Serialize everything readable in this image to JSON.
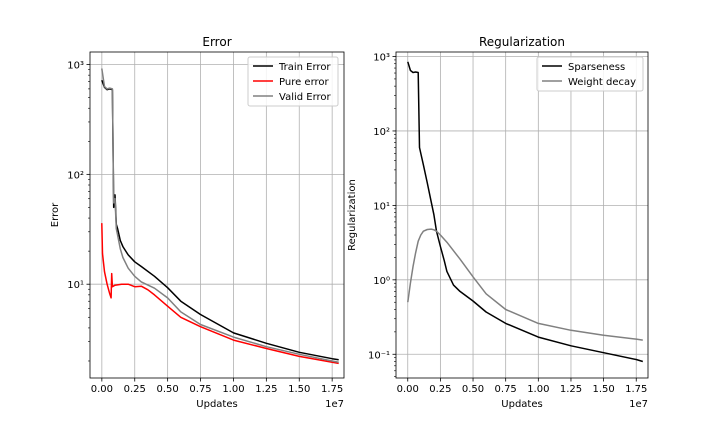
{
  "chart_data": [
    {
      "type": "line",
      "title": "Error",
      "xlabel": "Updates",
      "ylabel": "Error",
      "xscale": "linear",
      "yscale": "log",
      "xlim": [
        -0.09,
        1.84
      ],
      "ylim": [
        1.4,
        1300
      ],
      "x_offset_text": "1e7",
      "x_unit_multiplier": 10000000,
      "grid": true,
      "legend_position": "upper right",
      "xticks": [
        0.0,
        0.25,
        0.5,
        0.75,
        1.0,
        1.25,
        1.5,
        1.75
      ],
      "xtick_labels": [
        "0.00",
        "0.25",
        "0.50",
        "0.75",
        "1.00",
        "1.25",
        "1.50",
        "1.75"
      ],
      "yticks": [
        10,
        100,
        1000
      ],
      "ytick_labels": [
        "10¹",
        "10²",
        "10³"
      ],
      "series": [
        {
          "name": "Train Error",
          "color": "#000000",
          "x": [
            0.0,
            0.02,
            0.04,
            0.06,
            0.08,
            0.09,
            0.1,
            0.11,
            0.12,
            0.14,
            0.16,
            0.2,
            0.25,
            0.3,
            0.4,
            0.5,
            0.6,
            0.75,
            1.0,
            1.25,
            1.5,
            1.75,
            1.8
          ],
          "y": [
            720,
            620,
            590,
            600,
            590,
            50,
            65,
            35,
            32,
            25,
            22,
            18.5,
            16,
            14.5,
            11.8,
            9.3,
            7.0,
            5.3,
            3.6,
            2.9,
            2.4,
            2.1,
            2.05
          ]
        },
        {
          "name": "Pure error",
          "color": "#ff0000",
          "x": [
            0.0,
            0.005,
            0.02,
            0.04,
            0.06,
            0.07,
            0.075,
            0.08,
            0.1,
            0.15,
            0.2,
            0.25,
            0.3,
            0.35,
            0.4,
            0.5,
            0.6,
            0.75,
            1.0,
            1.25,
            1.5,
            1.75,
            1.8
          ],
          "y": [
            36,
            19,
            13,
            10,
            8.2,
            7.5,
            12.5,
            9.5,
            9.8,
            10.0,
            10.0,
            9.5,
            9.6,
            8.9,
            8.0,
            6.3,
            5.0,
            4.1,
            3.1,
            2.6,
            2.2,
            1.95,
            1.9
          ]
        },
        {
          "name": "Valid Error",
          "color": "#808080",
          "x": [
            0.0,
            0.02,
            0.04,
            0.06,
            0.08,
            0.09,
            0.1,
            0.11,
            0.12,
            0.14,
            0.16,
            0.2,
            0.25,
            0.3,
            0.4,
            0.5,
            0.6,
            0.75,
            1.0,
            1.25,
            1.5,
            1.75,
            1.8
          ],
          "y": [
            920,
            630,
            600,
            610,
            600,
            55,
            60,
            32,
            28,
            21,
            17.5,
            14,
            11.8,
            10.5,
            9.2,
            7.5,
            5.6,
            4.3,
            3.3,
            2.7,
            2.3,
            2.0,
            1.95
          ]
        }
      ]
    },
    {
      "type": "line",
      "title": "Regularization",
      "xlabel": "Updates",
      "ylabel": "Regularization",
      "xscale": "linear",
      "yscale": "log",
      "xlim": [
        -0.09,
        1.84
      ],
      "ylim": [
        0.048,
        1150
      ],
      "x_offset_text": "1e7",
      "x_unit_multiplier": 10000000,
      "grid": true,
      "legend_position": "upper right",
      "xticks": [
        0.0,
        0.25,
        0.5,
        0.75,
        1.0,
        1.25,
        1.5,
        1.75
      ],
      "xtick_labels": [
        "0.00",
        "0.25",
        "0.50",
        "0.75",
        "1.00",
        "1.25",
        "1.50",
        "1.75"
      ],
      "yticks": [
        0.1,
        1,
        10,
        100,
        1000
      ],
      "ytick_labels": [
        "10⁻¹",
        "10⁰",
        "10¹",
        "10²",
        "10³"
      ],
      "series": [
        {
          "name": "Sparseness",
          "color": "#000000",
          "x": [
            0.0,
            0.02,
            0.04,
            0.06,
            0.08,
            0.09,
            0.1,
            0.12,
            0.15,
            0.18,
            0.2,
            0.22,
            0.25,
            0.28,
            0.3,
            0.35,
            0.4,
            0.5,
            0.6,
            0.75,
            1.0,
            1.25,
            1.5,
            1.75,
            1.8
          ],
          "y": [
            850,
            650,
            610,
            620,
            610,
            60,
            50,
            35,
            20,
            11,
            7.5,
            4.5,
            2.8,
            1.8,
            1.3,
            0.85,
            0.7,
            0.52,
            0.37,
            0.26,
            0.17,
            0.13,
            0.105,
            0.085,
            0.08
          ]
        },
        {
          "name": "Weight decay",
          "color": "#808080",
          "x": [
            0.0,
            0.02,
            0.04,
            0.06,
            0.08,
            0.1,
            0.12,
            0.15,
            0.18,
            0.2,
            0.22,
            0.25,
            0.3,
            0.4,
            0.5,
            0.6,
            0.75,
            1.0,
            1.25,
            1.5,
            1.75,
            1.8
          ],
          "y": [
            0.5,
            0.9,
            1.5,
            2.3,
            3.3,
            4.0,
            4.5,
            4.75,
            4.8,
            4.7,
            4.5,
            4.0,
            3.2,
            1.9,
            1.1,
            0.65,
            0.4,
            0.26,
            0.21,
            0.18,
            0.16,
            0.155
          ]
        }
      ]
    }
  ]
}
